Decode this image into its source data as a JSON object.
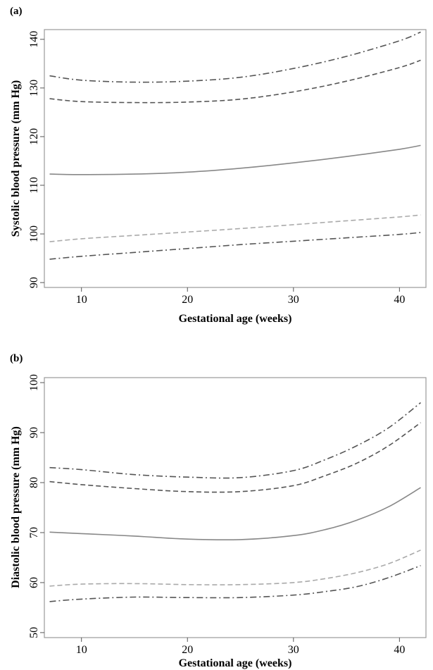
{
  "chart_data": [
    {
      "type": "line",
      "panel_label": "(a)",
      "xlabel": "Gestational age (weeks)",
      "ylabel": "Systolic blood pressure (mm Hg)",
      "xlim": [
        6.5,
        42.5
      ],
      "ylim": [
        89,
        142
      ],
      "xticks": [
        10,
        20,
        30,
        40
      ],
      "yticks": [
        90,
        100,
        110,
        120,
        130,
        140
      ],
      "grid": false,
      "legend": "none",
      "series": [
        {
          "style": "dashdot",
          "color": "#555555",
          "x": [
            7,
            10,
            15,
            20,
            25,
            30,
            35,
            40,
            42
          ],
          "y": [
            132.5,
            131.6,
            131.2,
            131.4,
            132.2,
            134.0,
            136.5,
            139.7,
            141.5
          ]
        },
        {
          "style": "dashed",
          "color": "#555555",
          "x": [
            7,
            10,
            15,
            20,
            25,
            30,
            35,
            40,
            42
          ],
          "y": [
            127.8,
            127.2,
            127.0,
            127.1,
            127.7,
            129.2,
            131.4,
            134.2,
            135.7
          ]
        },
        {
          "style": "solid",
          "color": "#888888",
          "x": [
            7,
            10,
            15,
            20,
            25,
            30,
            35,
            40,
            42
          ],
          "y": [
            112.3,
            112.2,
            112.3,
            112.7,
            113.5,
            114.6,
            115.9,
            117.4,
            118.2
          ]
        },
        {
          "style": "dashed",
          "color": "#aaaaaa",
          "x": [
            7,
            10,
            15,
            20,
            25,
            30,
            35,
            40,
            42
          ],
          "y": [
            98.4,
            99.0,
            99.7,
            100.4,
            101.1,
            101.9,
            102.7,
            103.5,
            103.9
          ]
        },
        {
          "style": "dashdot",
          "color": "#555555",
          "x": [
            7,
            10,
            15,
            20,
            25,
            30,
            35,
            40,
            42
          ],
          "y": [
            94.8,
            95.4,
            96.2,
            97.0,
            97.8,
            98.5,
            99.2,
            99.9,
            100.3
          ]
        }
      ]
    },
    {
      "type": "line",
      "panel_label": "(b)",
      "xlabel": "Gestational age (weeks)",
      "ylabel": "Diastolic blood pressure (mm Hg)",
      "xlim": [
        6.5,
        42.5
      ],
      "ylim": [
        49,
        101
      ],
      "xticks": [
        10,
        20,
        30,
        40
      ],
      "yticks": [
        50,
        60,
        70,
        80,
        90,
        100
      ],
      "grid": false,
      "legend": "none",
      "series": [
        {
          "style": "dashdot",
          "color": "#555555",
          "x": [
            7,
            10,
            15,
            20,
            25,
            30,
            33,
            36,
            39,
            42
          ],
          "y": [
            83.0,
            82.6,
            81.6,
            81.1,
            81.0,
            82.4,
            84.6,
            87.4,
            91.0,
            96.0
          ]
        },
        {
          "style": "dashed",
          "color": "#555555",
          "x": [
            7,
            10,
            15,
            20,
            25,
            30,
            33,
            36,
            39,
            42
          ],
          "y": [
            80.2,
            79.6,
            78.8,
            78.2,
            78.2,
            79.4,
            81.4,
            83.9,
            87.4,
            92.0
          ]
        },
        {
          "style": "solid",
          "color": "#888888",
          "x": [
            7,
            10,
            15,
            20,
            25,
            30,
            33,
            36,
            39,
            42
          ],
          "y": [
            70.1,
            69.8,
            69.3,
            68.7,
            68.6,
            69.4,
            70.6,
            72.5,
            75.2,
            79.0
          ]
        },
        {
          "style": "dashed",
          "color": "#aaaaaa",
          "x": [
            7,
            10,
            15,
            20,
            25,
            30,
            33,
            36,
            39,
            42
          ],
          "y": [
            59.3,
            59.7,
            59.8,
            59.6,
            59.6,
            60.0,
            60.8,
            62.0,
            63.8,
            66.5
          ]
        },
        {
          "style": "dashdot",
          "color": "#555555",
          "x": [
            7,
            10,
            15,
            20,
            25,
            30,
            33,
            36,
            39,
            42
          ],
          "y": [
            56.2,
            56.7,
            57.1,
            57.0,
            57.0,
            57.5,
            58.2,
            59.2,
            61.0,
            63.4
          ]
        }
      ]
    }
  ]
}
